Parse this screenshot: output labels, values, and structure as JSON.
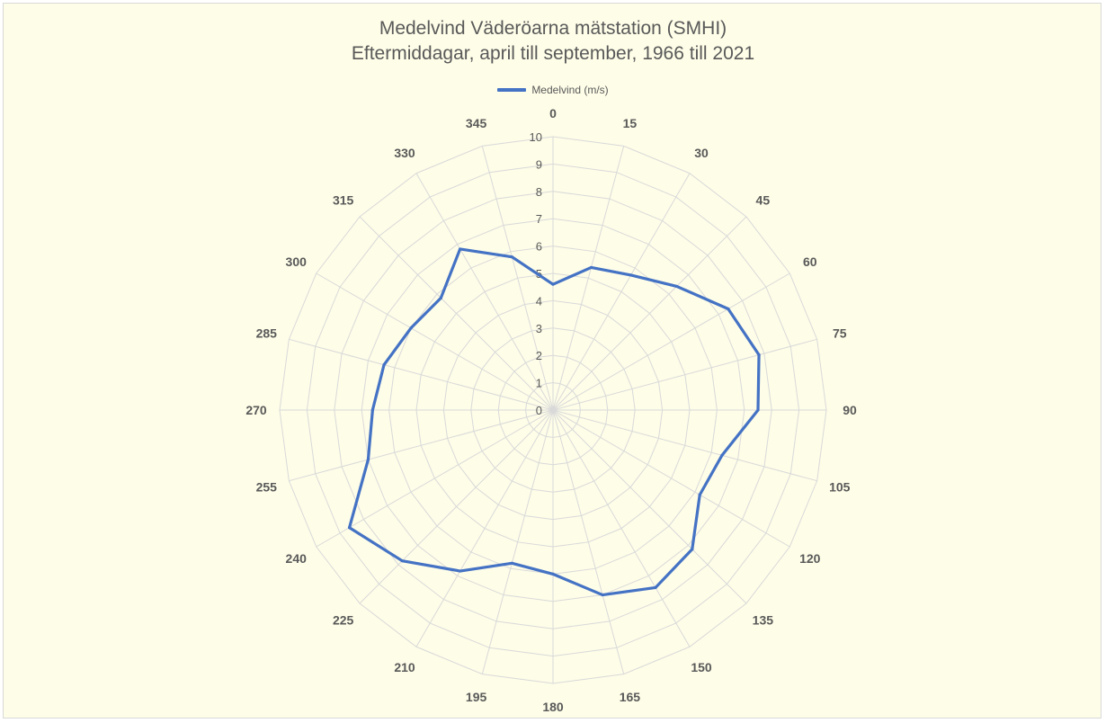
{
  "chart_data": {
    "type": "radar",
    "title": "Medelvind Väderöarna mätstation (SMHI)",
    "subtitle": "Eftermiddagar, april till september, 1966 till 2021",
    "categories": [
      "0",
      "15",
      "30",
      "45",
      "60",
      "75",
      "90",
      "105",
      "120",
      "135",
      "150",
      "165",
      "180",
      "195",
      "210",
      "225",
      "240",
      "255",
      "270",
      "285",
      "300",
      "315",
      "330",
      "345"
    ],
    "series": [
      {
        "name": "Medelvind (m/s)",
        "color": "#4472c4",
        "values": [
          4.6,
          5.4,
          5.7,
          6.4,
          7.4,
          7.8,
          7.5,
          6.4,
          6.2,
          7.2,
          7.5,
          7.0,
          6.0,
          5.8,
          6.8,
          7.8,
          8.6,
          7.0,
          6.6,
          6.4,
          6.0,
          5.8,
          6.8,
          5.8
        ]
      }
    ],
    "radial_ticks": [
      0,
      1,
      2,
      3,
      4,
      5,
      6,
      7,
      8,
      9,
      10
    ],
    "rmin": 0,
    "rmax": 10,
    "grid": true,
    "legend_position": "top"
  }
}
